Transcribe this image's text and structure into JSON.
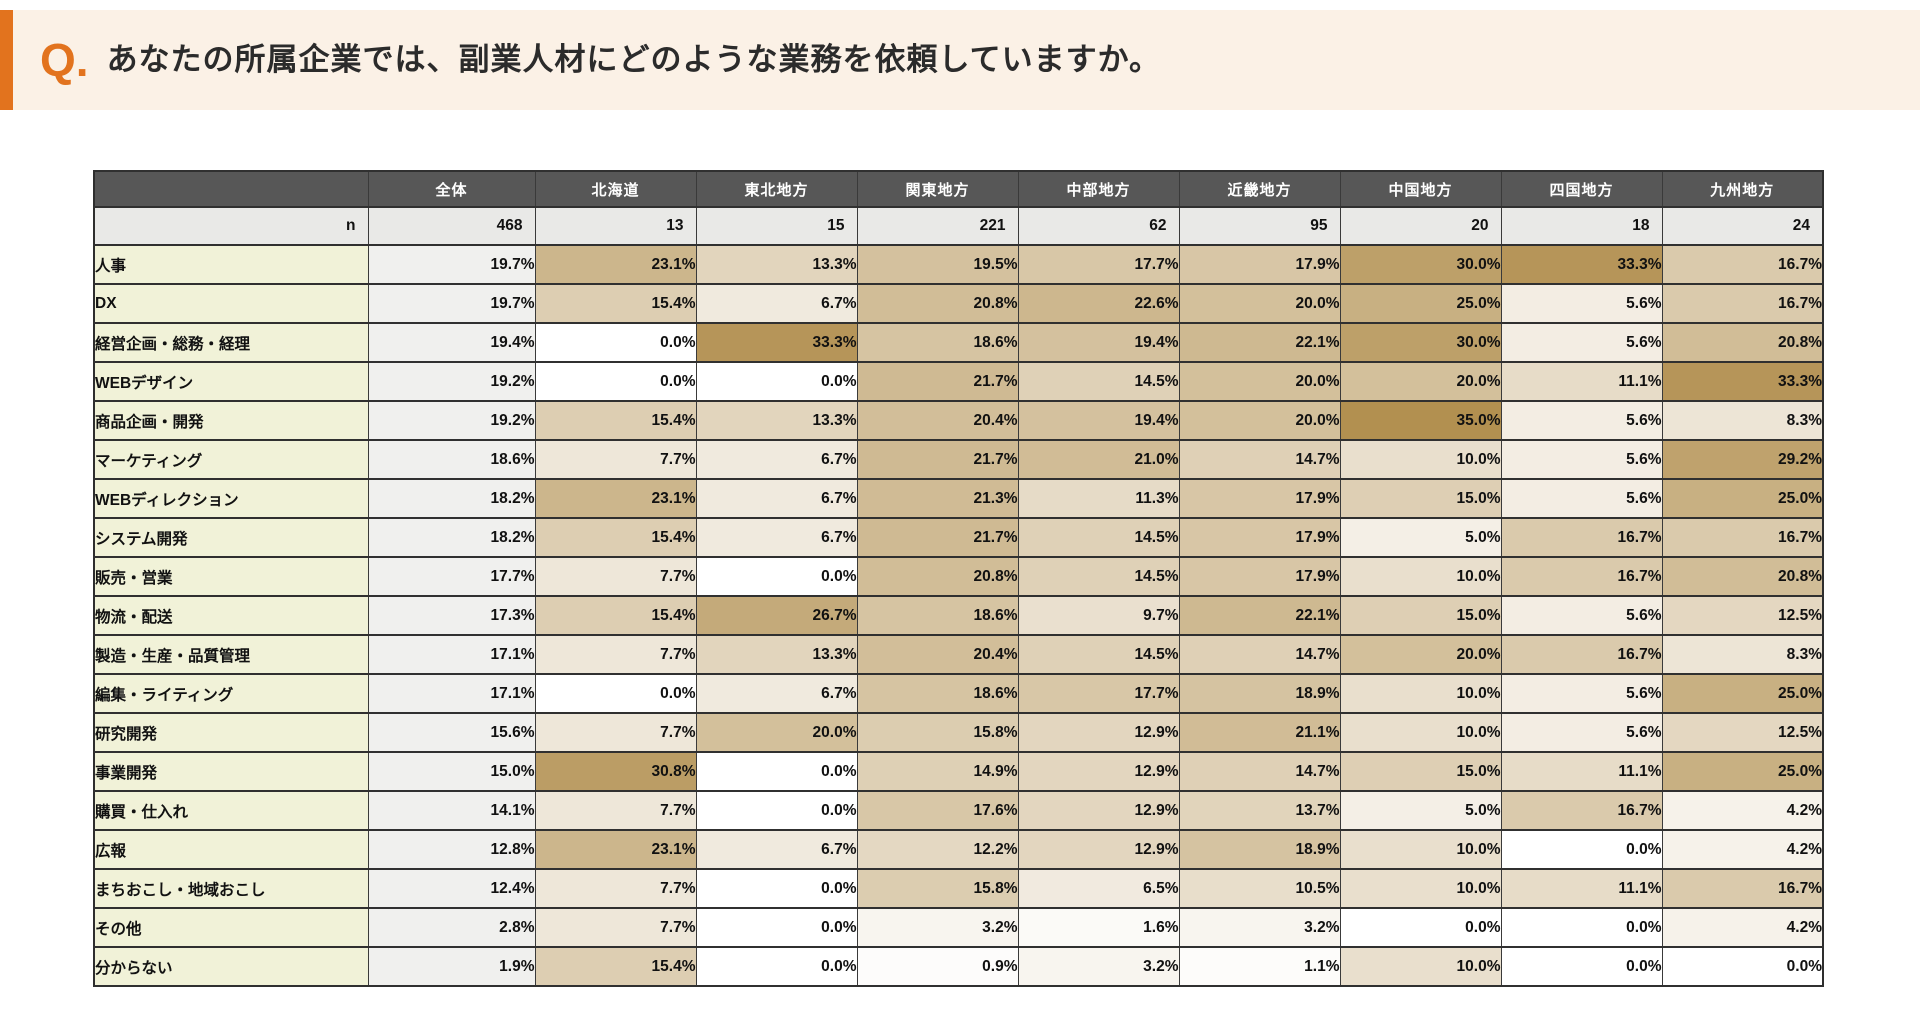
{
  "question": {
    "q_mark": "Q.",
    "text": "あなたの所属企業では、副業人材にどのような業務を依頼していますか。"
  },
  "colors": {
    "accent_orange": "#e2731e",
    "band_bg": "#fbf1e6",
    "header_bg": "#575757",
    "header_text": "#ffffff",
    "n_row_bg": "#e9e9e7",
    "label_col_bg": "#f1f2d8",
    "zentai_col_bg": "#f0f0ee",
    "border": "#303030"
  },
  "chart_data": {
    "type": "heatmap",
    "title": "あなたの所属企業では、副業人材にどのような業務を依頼していますか。",
    "unit": "%",
    "columns": [
      "全体",
      "北海道",
      "東北地方",
      "関東地方",
      "中部地方",
      "近畿地方",
      "中国地方",
      "四国地方",
      "九州地方"
    ],
    "n_label": "n",
    "n_values": [
      468,
      13,
      15,
      221,
      62,
      95,
      20,
      18,
      24
    ],
    "heat_scale": {
      "min": 0,
      "max": 35,
      "min_color": "#ffffff",
      "max_color": "#b29050",
      "note": "first column (全体) is flat gray, not heat-mapped"
    },
    "rows": [
      {
        "label": "人事",
        "values": [
          19.7,
          23.1,
          13.3,
          19.5,
          17.7,
          17.9,
          30.0,
          33.3,
          16.7
        ]
      },
      {
        "label": "DX",
        "values": [
          19.7,
          15.4,
          6.7,
          20.8,
          22.6,
          20.0,
          25.0,
          5.6,
          16.7
        ]
      },
      {
        "label": "経営企画・総務・経理",
        "values": [
          19.4,
          0.0,
          33.3,
          18.6,
          19.4,
          22.1,
          30.0,
          5.6,
          20.8
        ]
      },
      {
        "label": "WEBデザイン",
        "values": [
          19.2,
          0.0,
          0.0,
          21.7,
          14.5,
          20.0,
          20.0,
          11.1,
          33.3
        ]
      },
      {
        "label": "商品企画・開発",
        "values": [
          19.2,
          15.4,
          13.3,
          20.4,
          19.4,
          20.0,
          35.0,
          5.6,
          8.3
        ]
      },
      {
        "label": "マーケティング",
        "values": [
          18.6,
          7.7,
          6.7,
          21.7,
          21.0,
          14.7,
          10.0,
          5.6,
          29.2
        ]
      },
      {
        "label": "WEBディレクション",
        "values": [
          18.2,
          23.1,
          6.7,
          21.3,
          11.3,
          17.9,
          15.0,
          5.6,
          25.0
        ]
      },
      {
        "label": "システム開発",
        "values": [
          18.2,
          15.4,
          6.7,
          21.7,
          14.5,
          17.9,
          5.0,
          16.7,
          16.7
        ]
      },
      {
        "label": "販売・営業",
        "values": [
          17.7,
          7.7,
          0.0,
          20.8,
          14.5,
          17.9,
          10.0,
          16.7,
          20.8
        ]
      },
      {
        "label": "物流・配送",
        "values": [
          17.3,
          15.4,
          26.7,
          18.6,
          9.7,
          22.1,
          15.0,
          5.6,
          12.5
        ]
      },
      {
        "label": "製造・生産・品質管理",
        "values": [
          17.1,
          7.7,
          13.3,
          20.4,
          14.5,
          14.7,
          20.0,
          16.7,
          8.3
        ]
      },
      {
        "label": "編集・ライティング",
        "values": [
          17.1,
          0.0,
          6.7,
          18.6,
          17.7,
          18.9,
          10.0,
          5.6,
          25.0
        ]
      },
      {
        "label": "研究開発",
        "values": [
          15.6,
          7.7,
          20.0,
          15.8,
          12.9,
          21.1,
          10.0,
          5.6,
          12.5
        ]
      },
      {
        "label": "事業開発",
        "values": [
          15.0,
          30.8,
          0.0,
          14.9,
          12.9,
          14.7,
          15.0,
          11.1,
          25.0
        ]
      },
      {
        "label": "購買・仕入れ",
        "values": [
          14.1,
          7.7,
          0.0,
          17.6,
          12.9,
          13.7,
          5.0,
          16.7,
          4.2
        ]
      },
      {
        "label": "広報",
        "values": [
          12.8,
          23.1,
          6.7,
          12.2,
          12.9,
          18.9,
          10.0,
          0.0,
          4.2
        ]
      },
      {
        "label": "まちおこし・地域おこし",
        "values": [
          12.4,
          7.7,
          0.0,
          15.8,
          6.5,
          10.5,
          10.0,
          11.1,
          16.7
        ]
      },
      {
        "label": "その他",
        "values": [
          2.8,
          7.7,
          0.0,
          3.2,
          1.6,
          3.2,
          0.0,
          0.0,
          4.2
        ]
      },
      {
        "label": "分からない",
        "values": [
          1.9,
          15.4,
          0.0,
          0.9,
          3.2,
          1.1,
          10.0,
          0.0,
          0.0
        ]
      }
    ]
  }
}
